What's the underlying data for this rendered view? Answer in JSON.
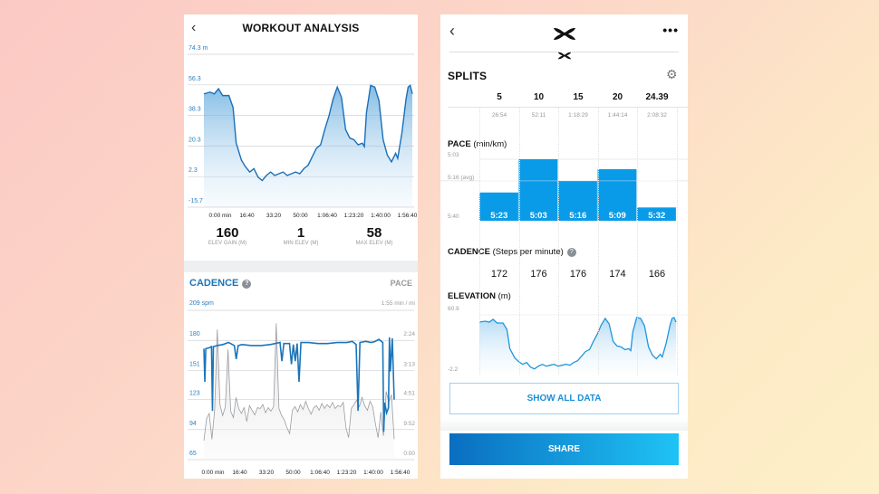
{
  "left": {
    "header": {
      "title": "WORKOUT ANALYSIS",
      "back_icon": "chevron-left-icon"
    },
    "stats": [
      {
        "value": "160",
        "label": "ELEV GAIN (M)"
      },
      {
        "value": "1",
        "label": "MIN ELEV (M)"
      },
      {
        "value": "58",
        "label": "MAX ELEV (M)"
      }
    ],
    "cadence": {
      "title": "CADENCE",
      "help_icon": "question-circle-icon",
      "pace_tab": "PACE",
      "top_left": "209 spm",
      "top_right": "1:55 min / mi"
    }
  },
  "right": {
    "header": {
      "back_icon": "chevron-left-icon",
      "logo": "under-armour-logo",
      "more_icon": "more-horizontal-icon"
    },
    "splits": {
      "title": "SPLITS",
      "settings_icon": "gear-icon",
      "columns": [
        "5",
        "10",
        "15",
        "20",
        "24.39"
      ],
      "times": [
        "26:54",
        "52:11",
        "1:18:29",
        "1:44:14",
        "2:08:32"
      ]
    },
    "pace": {
      "title": "PACE",
      "unit": "(min/km)",
      "labels": {
        "top": "5:03",
        "avg": "5:16 (avg)",
        "bottom": "5:40"
      }
    },
    "cadence": {
      "title": "CADENCE",
      "unit": "(Steps per minute)",
      "values": [
        "172",
        "176",
        "176",
        "174",
        "166"
      ]
    },
    "elevation": {
      "title": "ELEVATION",
      "unit": "(m)"
    },
    "show_all_label": "SHOW ALL DATA",
    "share_label": "SHARE"
  },
  "colors": {
    "accent": "#1b75bb",
    "bar": "#0a9be8",
    "share_start": "#0a6ec0",
    "share_end": "#1fc3f5"
  },
  "chart_data": [
    {
      "type": "area",
      "name_ref": "elevation",
      "ylabel_unit": "m",
      "y_ticks": [
        "74.3 m",
        "56.3",
        "38.3",
        "20.3",
        "2.3",
        "-15.7"
      ],
      "ylim": [
        -15.7,
        74.3
      ],
      "x_ticks": [
        "0:00 min",
        "16:40",
        "33:20",
        "50:00",
        "1:06:40",
        "1:23:20",
        "1:40:00",
        "1:56:40"
      ],
      "x_unit": "fraction of workout",
      "x": [
        0,
        0.03,
        0.05,
        0.07,
        0.09,
        0.12,
        0.14,
        0.155,
        0.18,
        0.2,
        0.22,
        0.24,
        0.26,
        0.28,
        0.3,
        0.32,
        0.34,
        0.36,
        0.38,
        0.4,
        0.42,
        0.44,
        0.46,
        0.48,
        0.5,
        0.52,
        0.54,
        0.56,
        0.58,
        0.6,
        0.62,
        0.64,
        0.66,
        0.68,
        0.7,
        0.72,
        0.74,
        0.76,
        0.77,
        0.78,
        0.8,
        0.82,
        0.84,
        0.86,
        0.88,
        0.9,
        0.92,
        0.93,
        0.95,
        0.97,
        0.98,
        0.99,
        1
      ],
      "y": [
        51,
        52,
        51,
        54,
        50,
        50,
        43,
        22,
        12,
        8,
        5,
        7,
        2,
        0,
        3,
        5,
        3,
        4,
        5,
        3,
        4,
        5,
        4,
        7,
        9,
        14,
        19,
        21,
        30,
        38,
        48,
        55,
        49,
        30,
        25,
        24,
        21,
        22,
        20,
        40,
        56,
        55,
        47,
        24,
        15,
        11,
        16,
        13,
        28,
        48,
        55,
        56,
        51
      ],
      "grid": true
    },
    {
      "type": "line",
      "title": "CADENCE",
      "left_ticks": [
        "180",
        "151",
        "123",
        "94",
        "65"
      ],
      "ylim": [
        65,
        209
      ],
      "right_ticks": [
        "2:24",
        "3:13",
        "4:51",
        "9:52",
        "0:00"
      ],
      "right_scale": "reciprocal pace (min/mi)",
      "x_ticks": [
        "0:00 min",
        "16:40",
        "33:20",
        "50:00",
        "1:06:40",
        "1:23:20",
        "1:40:00",
        "1:56:40"
      ],
      "series": [
        {
          "name": "CADENCE",
          "color": "#1b75bb",
          "x": [
            0,
            0.005,
            0.01,
            0.03,
            0.04,
            0.045,
            0.05,
            0.07,
            0.1,
            0.13,
            0.16,
            0.17,
            0.18,
            0.2,
            0.25,
            0.3,
            0.35,
            0.4,
            0.41,
            0.42,
            0.45,
            0.46,
            0.47,
            0.48,
            0.49,
            0.5,
            0.51,
            0.55,
            0.6,
            0.65,
            0.7,
            0.75,
            0.78,
            0.8,
            0.81,
            0.82,
            0.85,
            0.88,
            0.9,
            0.92,
            0.94,
            0.945,
            0.95,
            0.96,
            0.97,
            0.975,
            0.98,
            0.99,
            1
          ],
          "y": [
            172,
            140,
            172,
            173,
            174,
            112,
            174,
            175,
            176,
            178,
            175,
            162,
            175,
            176,
            175,
            175,
            176,
            178,
            160,
            177,
            177,
            157,
            176,
            160,
            177,
            140,
            178,
            178,
            177,
            177,
            178,
            178,
            179,
            176,
            112,
            178,
            179,
            178,
            179,
            181,
            178,
            92,
            120,
            110,
            115,
            183,
            150,
            182,
            123
          ]
        },
        {
          "name": "PACE",
          "color": "#9a9ca0",
          "unit": "min/mi",
          "y": [
            15,
            7,
            6.2,
            14,
            5.8,
            2.2,
            5.2,
            6.5,
            5.4,
            2.6,
            5.9,
            6.8,
            4.6,
            5.6,
            6.2,
            5.5,
            7.5,
            5.3,
            5.8,
            6.4,
            5.5,
            5.6,
            5.2,
            6.1,
            5.5,
            5.9,
            5.4,
            2.1,
            5.6,
            6.5,
            7.2,
            9,
            11,
            5.8,
            5.4,
            6,
            5.2,
            5.7,
            4.9,
            5.6,
            6.3,
            5.5,
            5.3,
            5.8,
            5.1,
            5.6,
            5.2,
            5.5,
            5,
            5.6,
            5.3,
            5.4,
            5,
            9,
            13,
            5.6,
            5.2,
            4.8,
            5.4,
            4.6,
            5.3,
            5.8,
            4.9,
            5.4,
            8,
            13,
            6,
            12,
            4.2,
            5,
            4.4,
            14
          ]
        }
      ]
    },
    {
      "type": "bar",
      "title": "PACE (min/km)",
      "categories": [
        "5",
        "10",
        "15",
        "20",
        "24.39"
      ],
      "values": [
        "5:23",
        "5:03",
        "5:16",
        "5:09",
        "5:32"
      ],
      "ylim": [
        "5:40",
        "5:03"
      ],
      "average": "5:16"
    },
    {
      "type": "area",
      "title": "ELEVATION (m)",
      "y_ticks": [
        "60.9",
        "-2.2"
      ],
      "ylim": [
        -2.2,
        60.9
      ]
    }
  ]
}
